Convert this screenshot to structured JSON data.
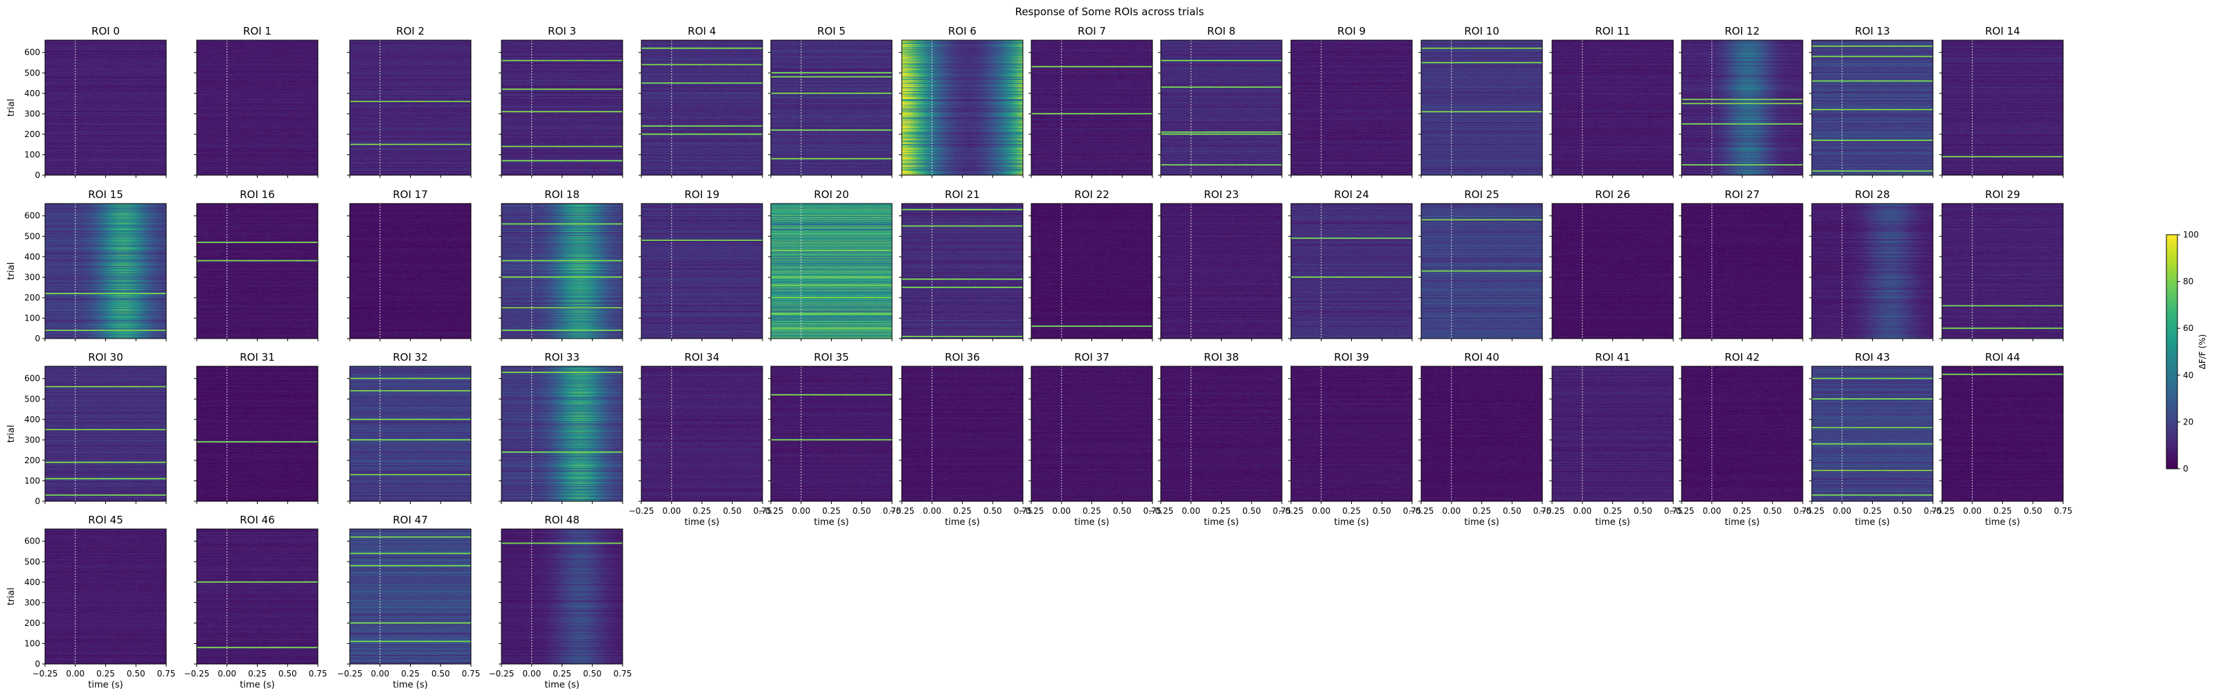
{
  "figure": {
    "title": "Response of Some ROIs across trials"
  },
  "chart_data": {
    "type": "heatmap",
    "title": "Response of Some ROIs across trials",
    "xlabel": "time (s)",
    "ylabel": "trial",
    "xlim": [
      -0.25,
      0.75
    ],
    "ylim": [
      0,
      660
    ],
    "x_ticks": [
      -0.25,
      0.0,
      0.25,
      0.5,
      0.75
    ],
    "x_tick_labels": [
      "−0.25",
      "0.00",
      "0.25",
      "0.50",
      "0.75"
    ],
    "y_ticks": [
      0,
      100,
      200,
      300,
      400,
      500,
      600
    ],
    "y_tick_labels": [
      "0",
      "100",
      "200",
      "300",
      "400",
      "500",
      "600"
    ],
    "stimulus_onset_s": 0.0,
    "n_trials": 660,
    "n_time_bins": 60,
    "colormap": "viridis",
    "colorbar": {
      "label": "ΔF/F (%)",
      "range": [
        0,
        100
      ],
      "ticks": [
        0,
        20,
        40,
        60,
        80,
        100
      ],
      "tick_labels": [
        "0",
        "20",
        "40",
        "60",
        "80",
        "100"
      ],
      "stops": [
        "#440154",
        "#482878",
        "#3e4a89",
        "#31688e",
        "#26828e",
        "#1f9e89",
        "#35b779",
        "#6ece58",
        "#b5de2b",
        "#fde725"
      ]
    },
    "grid_columns": 15,
    "panels": [
      {
        "title": "ROI 0",
        "activity": 0.1,
        "stripes": [],
        "temporal": "flat"
      },
      {
        "title": "ROI 1",
        "activity": 0.08,
        "stripes": [],
        "temporal": "flat"
      },
      {
        "title": "ROI 2",
        "activity": 0.12,
        "stripes": [
          150,
          360
        ],
        "temporal": "flat"
      },
      {
        "title": "ROI 3",
        "activity": 0.12,
        "stripes": [
          70,
          140,
          310,
          420,
          560
        ],
        "temporal": "flat"
      },
      {
        "title": "ROI 4",
        "activity": 0.15,
        "stripes": [
          200,
          240,
          450,
          540,
          620
        ],
        "temporal": "flat"
      },
      {
        "title": "ROI 5",
        "activity": 0.15,
        "stripes": [
          80,
          220,
          400,
          480,
          500
        ],
        "temporal": "flat"
      },
      {
        "title": "ROI 6",
        "activity": 0.45,
        "stripes": [],
        "temporal": "edges"
      },
      {
        "title": "ROI 7",
        "activity": 0.08,
        "stripes": [
          530,
          300
        ],
        "temporal": "flat"
      },
      {
        "title": "ROI 8",
        "activity": 0.14,
        "stripes": [
          200,
          210,
          430,
          560,
          50
        ],
        "temporal": "flat"
      },
      {
        "title": "ROI 9",
        "activity": 0.08,
        "stripes": [],
        "temporal": "flat"
      },
      {
        "title": "ROI 10",
        "activity": 0.18,
        "stripes": [
          310,
          550,
          620
        ],
        "temporal": "flat"
      },
      {
        "title": "ROI 11",
        "activity": 0.08,
        "stripes": [],
        "temporal": "flat"
      },
      {
        "title": "ROI 12",
        "activity": 0.22,
        "stripes": [
          50,
          250,
          350,
          370
        ],
        "temporal": "center"
      },
      {
        "title": "ROI 13",
        "activity": 0.22,
        "stripes": [
          20,
          170,
          320,
          460,
          580,
          630
        ],
        "temporal": "flat"
      },
      {
        "title": "ROI 14",
        "activity": 0.1,
        "stripes": [
          90
        ],
        "temporal": "flat"
      },
      {
        "title": "ROI 15",
        "activity": 0.35,
        "stripes": [
          40,
          220
        ],
        "temporal": "late"
      },
      {
        "title": "ROI 16",
        "activity": 0.06,
        "stripes": [
          380,
          470
        ],
        "temporal": "flat"
      },
      {
        "title": "ROI 17",
        "activity": 0.05,
        "stripes": [],
        "temporal": "flat"
      },
      {
        "title": "ROI 18",
        "activity": 0.35,
        "stripes": [
          40,
          150,
          300,
          380,
          560
        ],
        "temporal": "late"
      },
      {
        "title": "ROI 19",
        "activity": 0.15,
        "stripes": [
          480
        ],
        "temporal": "flat"
      },
      {
        "title": "ROI 20",
        "activity": 0.6,
        "stripes": [
          50,
          120,
          200,
          260,
          300,
          430
        ],
        "temporal": "flat"
      },
      {
        "title": "ROI 21",
        "activity": 0.14,
        "stripes": [
          10,
          250,
          290,
          550,
          630
        ],
        "temporal": "flat"
      },
      {
        "title": "ROI 22",
        "activity": 0.05,
        "stripes": [
          60
        ],
        "temporal": "flat"
      },
      {
        "title": "ROI 23",
        "activity": 0.08,
        "stripes": [],
        "temporal": "flat"
      },
      {
        "title": "ROI 24",
        "activity": 0.15,
        "stripes": [
          300,
          490
        ],
        "temporal": "flat"
      },
      {
        "title": "ROI 25",
        "activity": 0.22,
        "stripes": [
          330,
          580
        ],
        "temporal": "flat"
      },
      {
        "title": "ROI 26",
        "activity": 0.05,
        "stripes": [],
        "temporal": "flat"
      },
      {
        "title": "ROI 27",
        "activity": 0.05,
        "stripes": [],
        "temporal": "flat"
      },
      {
        "title": "ROI 28",
        "activity": 0.15,
        "stripes": [],
        "temporal": "late"
      },
      {
        "title": "ROI 29",
        "activity": 0.1,
        "stripes": [
          50,
          160
        ],
        "temporal": "flat"
      },
      {
        "title": "ROI 30",
        "activity": 0.15,
        "stripes": [
          30,
          110,
          190,
          350,
          560
        ],
        "temporal": "flat"
      },
      {
        "title": "ROI 31",
        "activity": 0.05,
        "stripes": [
          290
        ],
        "temporal": "flat"
      },
      {
        "title": "ROI 32",
        "activity": 0.2,
        "stripes": [
          130,
          300,
          400,
          540,
          600
        ],
        "temporal": "flat"
      },
      {
        "title": "ROI 33",
        "activity": 0.35,
        "stripes": [
          240,
          630
        ],
        "temporal": "late"
      },
      {
        "title": "ROI 34",
        "activity": 0.1,
        "stripes": [],
        "temporal": "flat"
      },
      {
        "title": "ROI 35",
        "activity": 0.08,
        "stripes": [
          300,
          520
        ],
        "temporal": "flat"
      },
      {
        "title": "ROI 36",
        "activity": 0.06,
        "stripes": [],
        "temporal": "flat"
      },
      {
        "title": "ROI 37",
        "activity": 0.06,
        "stripes": [],
        "temporal": "flat"
      },
      {
        "title": "ROI 38",
        "activity": 0.06,
        "stripes": [],
        "temporal": "flat"
      },
      {
        "title": "ROI 39",
        "activity": 0.06,
        "stripes": [],
        "temporal": "flat"
      },
      {
        "title": "ROI 40",
        "activity": 0.05,
        "stripes": [],
        "temporal": "flat"
      },
      {
        "title": "ROI 41",
        "activity": 0.1,
        "stripes": [],
        "temporal": "flat"
      },
      {
        "title": "ROI 42",
        "activity": 0.05,
        "stripes": [],
        "temporal": "flat"
      },
      {
        "title": "ROI 43",
        "activity": 0.22,
        "stripes": [
          30,
          150,
          280,
          360,
          500,
          600
        ],
        "temporal": "flat"
      },
      {
        "title": "ROI 44",
        "activity": 0.05,
        "stripes": [
          620
        ],
        "temporal": "flat"
      },
      {
        "title": "ROI 45",
        "activity": 0.08,
        "stripes": [],
        "temporal": "flat"
      },
      {
        "title": "ROI 46",
        "activity": 0.08,
        "stripes": [
          80,
          400
        ],
        "temporal": "flat"
      },
      {
        "title": "ROI 47",
        "activity": 0.25,
        "stripes": [
          110,
          200,
          480,
          540,
          620
        ],
        "temporal": "flat"
      },
      {
        "title": "ROI 48",
        "activity": 0.15,
        "stripes": [
          590
        ],
        "temporal": "late"
      }
    ]
  }
}
